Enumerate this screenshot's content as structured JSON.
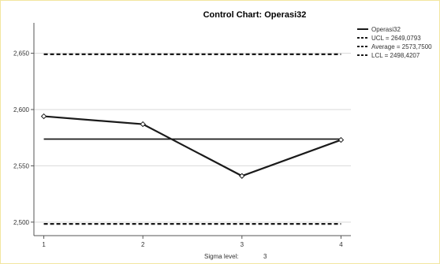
{
  "chart_data": {
    "type": "line",
    "title": "Control Chart: Operasi32",
    "x": [
      1,
      2,
      3,
      4
    ],
    "x_tick_labels": [
      "1",
      "2",
      "3",
      "4"
    ],
    "series": [
      {
        "name": "Operasi32",
        "values": [
          2594,
          2587,
          2541,
          2573
        ]
      }
    ],
    "ucl": 2649.0793,
    "average": 2573.75,
    "lcl": 2498.4207,
    "legend": {
      "placement": "top-right",
      "entries": [
        {
          "label": "Operasi32",
          "style": "solid"
        },
        {
          "label": "UCL = 2649,0793",
          "style": "dashed"
        },
        {
          "label": "Average = 2573,7500",
          "style": "dashed"
        },
        {
          "label": "LCL = 2498,4207",
          "style": "dashed"
        }
      ]
    },
    "y_ticks": [
      2500,
      2550,
      2600,
      2650
    ],
    "y_tick_labels": [
      "2,500",
      "2,550",
      "2,600",
      "2,650"
    ],
    "ylim": [
      2488,
      2677
    ],
    "xlim": [
      0.9,
      4.1
    ],
    "grid": "horizontal",
    "sigma_label": "Sigma level:",
    "sigma_value": "3"
  },
  "colors": {
    "line": "#1a1a1a",
    "grid": "#d9d9d9",
    "axis": "#555555",
    "frame_border": "#f2e6a0",
    "marker_fill": "#ffffff"
  }
}
